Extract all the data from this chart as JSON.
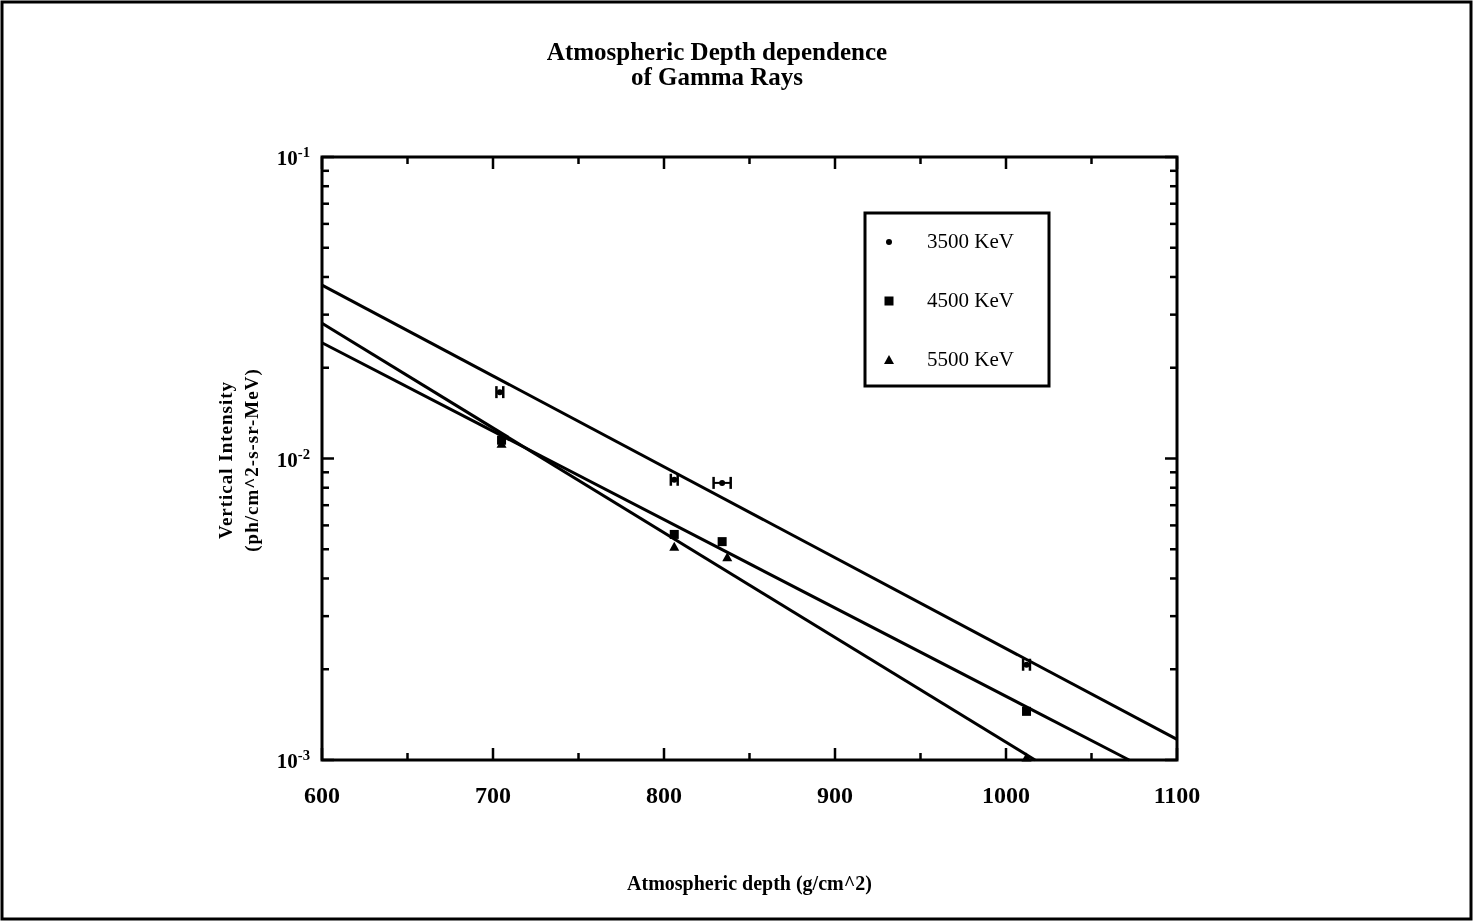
{
  "chart_data": {
    "type": "scatter",
    "title": "Atmospheric Depth dependence\nof Gamma Rays",
    "xlabel": "Atmospheric depth (g/cm^2)",
    "ylabel": "Vertical  Intensity\n(ph/cm^2-s-sr-MeV)",
    "log": "y",
    "legend": "top right",
    "grid": false,
    "xlim": [
      600,
      1100
    ],
    "xticks": [
      600,
      {
        "value": 650,
        "label": null
      },
      700,
      {
        "value": 750,
        "label": null
      },
      800,
      {
        "value": 850,
        "label": null
      },
      900,
      {
        "value": 950,
        "label": null
      },
      1000,
      {
        "value": 1050,
        "label": null
      },
      1100
    ],
    "ylim": [
      0.001,
      0.1
    ],
    "yticks": [
      {
        "value": 0.001,
        "label": "10$^{-3}$"
      },
      {
        "value": 0.002,
        "label": null
      },
      {
        "value": 0.003,
        "label": null
      },
      {
        "value": 0.004,
        "label": null
      },
      {
        "value": 0.005,
        "label": null
      },
      {
        "value": 0.006,
        "label": null
      },
      {
        "value": 0.007,
        "label": null
      },
      {
        "value": 0.008,
        "label": null
      },
      {
        "value": 0.009,
        "label": null
      },
      {
        "value": 0.01,
        "label": "10$^{-2}$"
      },
      {
        "value": 0.02,
        "label": null
      },
      {
        "value": 0.03,
        "label": null
      },
      {
        "value": 0.04,
        "label": null
      },
      {
        "value": 0.05,
        "label": null
      },
      {
        "value": 0.06,
        "label": null
      },
      {
        "value": 0.07,
        "label": null
      },
      {
        "value": 0.08,
        "label": null
      },
      {
        "value": 0.09,
        "label": null
      },
      {
        "value": 0.1,
        "label": "10$^{-1}$"
      }
    ],
    "series": [
      {
        "name": "3500 KeV",
        "type": "scatter",
        "marker": "circle",
        "color": "#000000",
        "x": [
          704,
          806,
          834,
          1012
        ],
        "values": [
          0.0166,
          0.0085,
          0.0083,
          0.00207
        ],
        "xerrors": [
          2,
          2,
          5,
          2
        ]
      },
      {
        "name": "4500 KeV",
        "type": "scatter",
        "marker": "square",
        "color": "#000000",
        "x": [
          705,
          806,
          834,
          1012
        ],
        "values": [
          0.0115,
          0.0056,
          0.0053,
          0.00145
        ]
      },
      {
        "name": "5500 KeV",
        "type": "scatter",
        "marker": "triangle",
        "color": "#000000",
        "x": [
          705,
          806,
          837,
          1012
        ],
        "values": [
          0.0112,
          0.0051,
          0.0047,
          0.00102
        ]
      },
      {
        "type": "line",
        "color": "#000000",
        "line_style": "solid",
        "x": [
          600,
          1100
        ],
        "values": [
          0.0376,
          0.00117
        ]
      },
      {
        "type": "line",
        "color": "#000000",
        "line_style": "solid",
        "x": [
          600,
          1072
        ],
        "values": [
          0.0242,
          0.001
        ]
      },
      {
        "type": "line",
        "color": "#000000",
        "line_style": "solid",
        "x": [
          600,
          1017
        ],
        "values": [
          0.0281,
          0.001
        ]
      }
    ]
  }
}
